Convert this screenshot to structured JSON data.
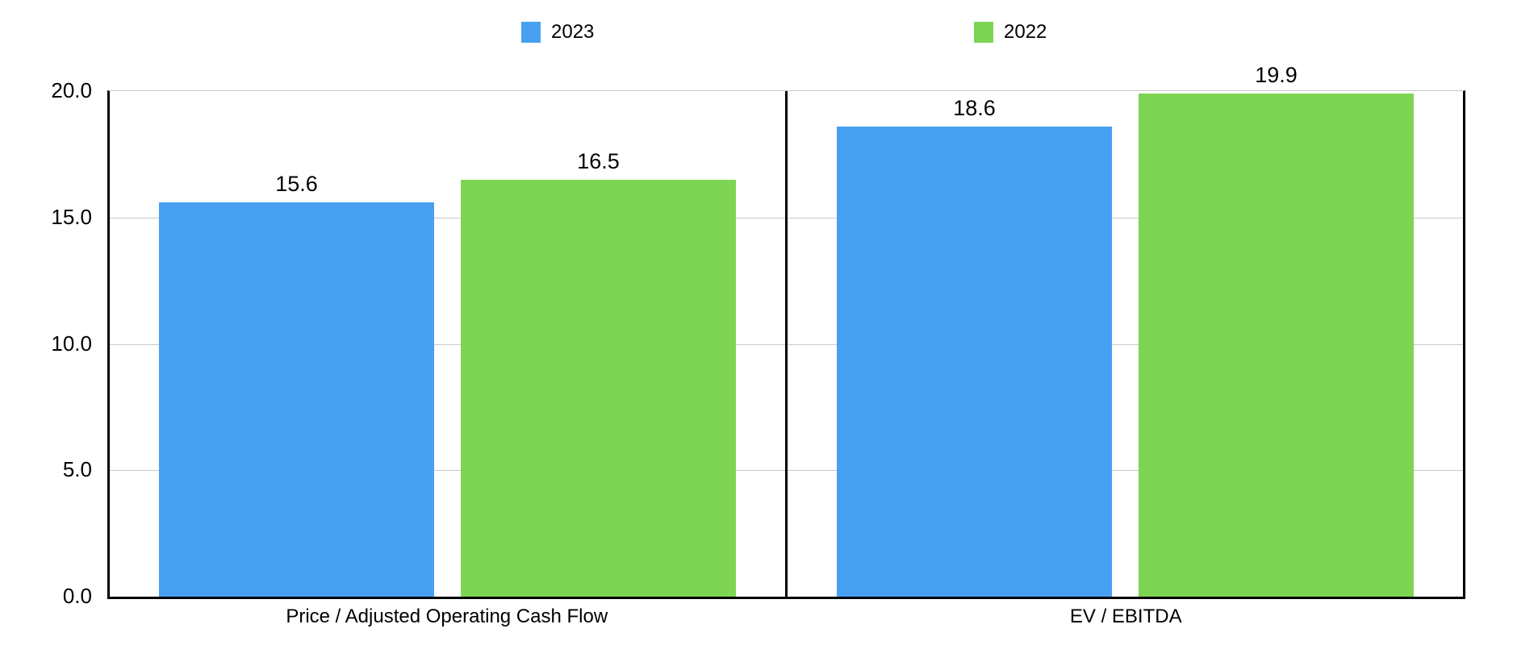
{
  "chart_data": {
    "type": "bar",
    "title": "",
    "categories": [
      "Price / Adjusted Operating Cash Flow",
      "EV / EBITDA"
    ],
    "series": [
      {
        "name": "2023",
        "color": "#47A0F2",
        "values": [
          15.6,
          18.6
        ]
      },
      {
        "name": "2022",
        "color": "#7DD553",
        "values": [
          16.5,
          19.9
        ]
      }
    ],
    "value_labels": [
      [
        "15.6",
        "18.6"
      ],
      [
        "16.5",
        "19.9"
      ]
    ],
    "ylim": [
      0,
      20
    ],
    "ytick_labels": [
      "20.0",
      "15.0",
      "10.0",
      "5.0",
      "0.0"
    ],
    "grid": "horizontal",
    "legend_position": "top",
    "colors": {
      "axis": "#000000",
      "gridline": "#c9c9c9",
      "background": "#ffffff",
      "text": "#000000",
      "series_2023": "#47A0F2",
      "series_2022": "#7DD553"
    }
  }
}
